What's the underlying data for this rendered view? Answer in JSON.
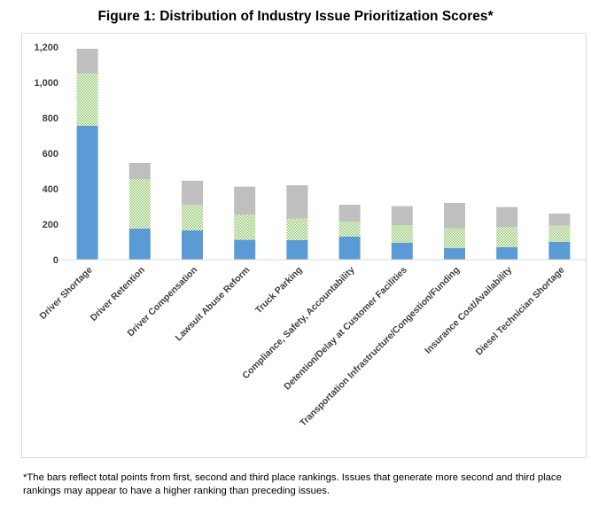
{
  "chart_data": {
    "type": "bar",
    "stacked": true,
    "title": "Figure 1: Distribution of Industry Issue Prioritization Scores*",
    "categories": [
      "Driver Shortage",
      "Driver Retention",
      "Driver Compensation",
      "Lawsuit Abuse Reform",
      "Truck Parking",
      "Compliance, Safety, Accountability",
      "Detention/Delay at Customer Facilities",
      "Transportation Infrastructure/Congestion/Funding",
      "Insurance Cost/Availability",
      "Diesel Technician Shortage"
    ],
    "series": [
      {
        "values": [
          755,
          175,
          165,
          112,
          110,
          130,
          95,
          65,
          70,
          100
        ],
        "color": "#5b9bd5",
        "pattern": "solid"
      },
      {
        "values": [
          295,
          280,
          145,
          143,
          122,
          85,
          100,
          112,
          115,
          92
        ],
        "color": "#8fc46a",
        "pattern": "dots"
      },
      {
        "values": [
          140,
          90,
          135,
          157,
          188,
          95,
          107,
          143,
          112,
          68
        ],
        "color": "#bfbfbf",
        "pattern": "solid"
      }
    ],
    "ylim": [
      0,
      1200
    ],
    "yticks": [
      "0",
      "200",
      "400",
      "600",
      "800",
      "1,000",
      "1,200"
    ],
    "ytick_values": [
      0,
      200,
      400,
      600,
      800,
      1000,
      1200
    ],
    "grid": false,
    "legend": "none",
    "xlabel": "",
    "ylabel": ""
  },
  "footnote": "*The bars reflect total points from first, second and third place rankings.  Issues that generate more second and third place rankings may appear to have a higher ranking than preceding issues."
}
